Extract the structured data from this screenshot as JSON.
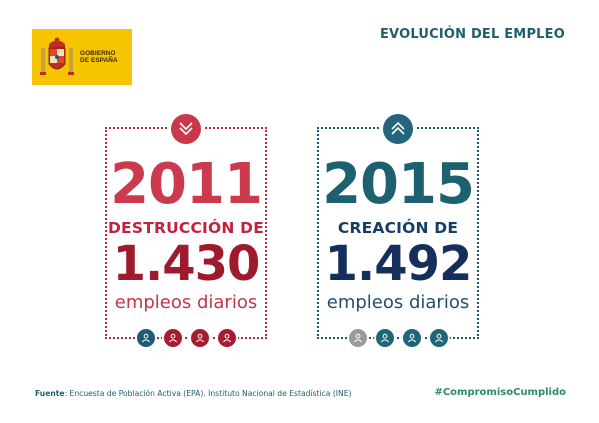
{
  "logo": {
    "line1": "GOBIERNO",
    "line2": "DE ESPAÑA"
  },
  "title": "EVOLUCIÓN DEL EMPLEO",
  "cards": [
    {
      "year": "2011",
      "action": "DESTRUCCIÓN DE",
      "number": "1.430",
      "unit": "empleos diarios",
      "icon": "chevrons-down-icon",
      "people_colors": [
        "#1f5a78",
        "#a81c30",
        "#a81c30",
        "#a81c30"
      ]
    },
    {
      "year": "2015",
      "action": "CREACIÓN DE",
      "number": "1.492",
      "unit": "empleos diarios",
      "icon": "chevrons-up-icon",
      "people_colors": [
        "#9a9a9a",
        "#1f6777",
        "#1f6777",
        "#1f6777"
      ]
    }
  ],
  "footer": {
    "source_label": "Fuente",
    "source_text": ": Encuesta de Población Activa (EPA). Instituto Nacional de Estadística  (INE)",
    "hashtag": "#CompromisoCumplido"
  },
  "colors": {
    "red": "#c9384b",
    "blue": "#1d5472",
    "gold": "#f6c400",
    "hashtag": "#2d8a6a"
  }
}
